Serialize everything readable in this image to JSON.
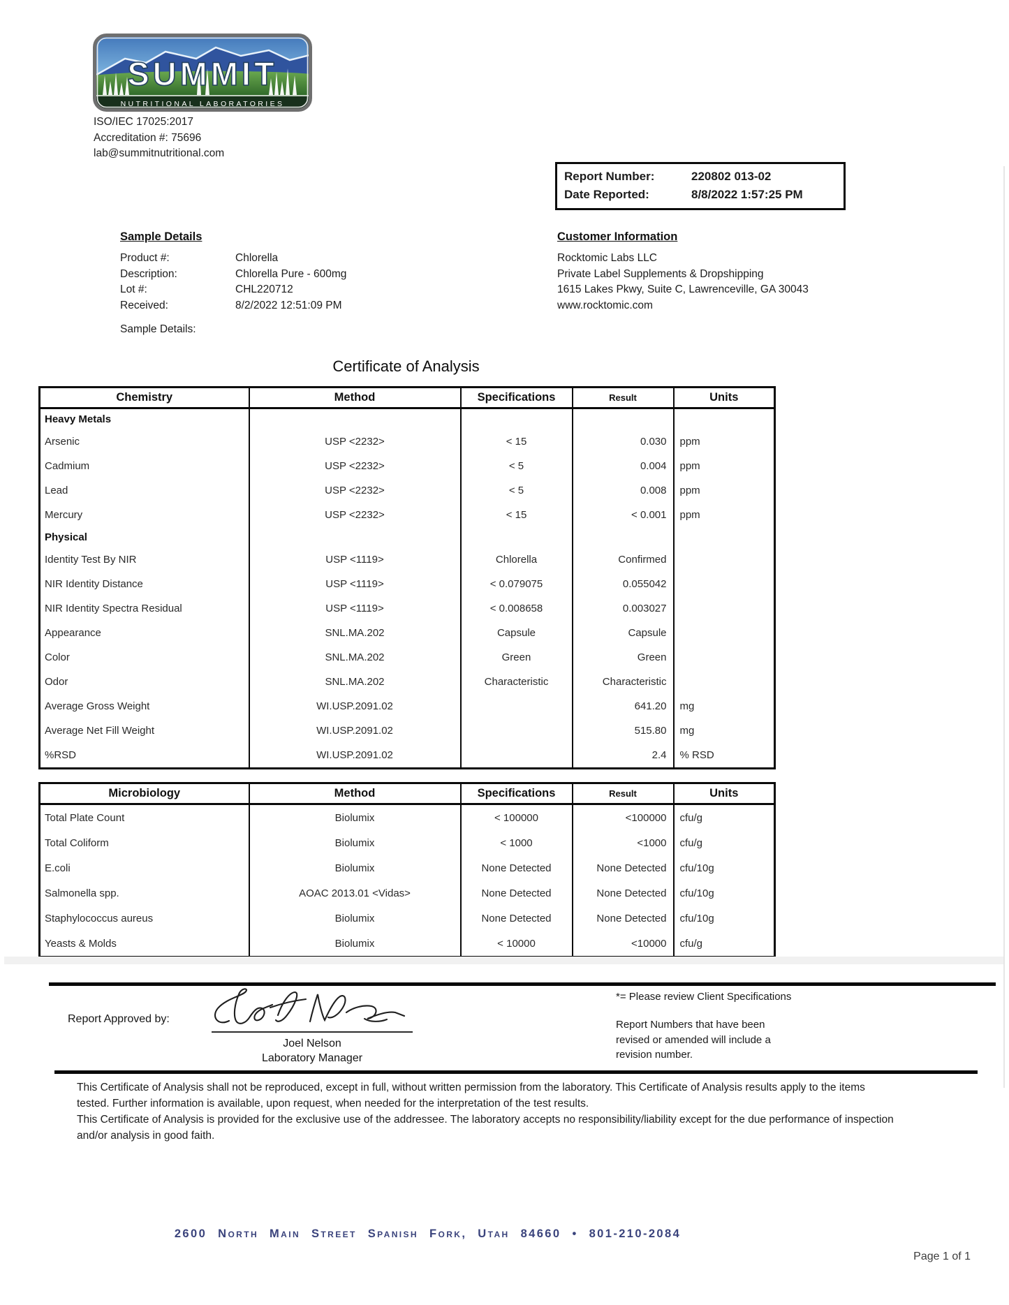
{
  "header": {
    "logo": {
      "title": "SUMMIT",
      "subtitle": "NUTRITIONAL LABORATORIES"
    },
    "accreditation": [
      "ISO/IEC 17025:2017",
      "Accreditation #: 75696",
      "lab@summitnutritional.com"
    ],
    "report_box": {
      "report_number_label": "Report Number:",
      "report_number": "220802 013-02",
      "date_reported_label": "Date Reported:",
      "date_reported": "8/8/2022 1:57:25 PM"
    }
  },
  "sample_details": {
    "heading": "Sample Details",
    "rows": [
      {
        "label": "Product #:",
        "value": "Chlorella"
      },
      {
        "label": "Description:",
        "value": "Chlorella Pure - 600mg"
      },
      {
        "label": "Lot #:",
        "value": "CHL220712"
      },
      {
        "label": "Received:",
        "value": "8/2/2022 12:51:09 PM"
      }
    ],
    "extra_label": "Sample Details:"
  },
  "customer": {
    "heading": "Customer Information",
    "lines": [
      "Rocktomic Labs LLC",
      "Private Label Supplements & Dropshipping",
      "1615 Lakes Pkwy, Suite C, Lawrenceville, GA 30043",
      "www.rocktomic.com"
    ]
  },
  "title": "Certificate of Analysis",
  "chemistry_table": {
    "headers": [
      "Chemistry",
      "Method",
      "Specifications",
      "Result",
      "Units"
    ],
    "rows": [
      {
        "section": "Heavy Metals"
      },
      {
        "name": "Arsenic",
        "method": "USP <2232>",
        "spec": "< 15",
        "result": "0.030",
        "units": "ppm"
      },
      {
        "name": "Cadmium",
        "method": "USP <2232>",
        "spec": "< 5",
        "result": "0.004",
        "units": "ppm"
      },
      {
        "name": "Lead",
        "method": "USP <2232>",
        "spec": "< 5",
        "result": "0.008",
        "units": "ppm"
      },
      {
        "name": "Mercury",
        "method": "USP <2232>",
        "spec": "< 15",
        "result": "< 0.001",
        "units": "ppm"
      },
      {
        "section": "Physical"
      },
      {
        "name": "Identity Test By NIR",
        "method": "USP <1119>",
        "spec": "Chlorella",
        "result": "Confirmed",
        "units": ""
      },
      {
        "name": "NIR Identity Distance",
        "method": "USP <1119>",
        "spec": "< 0.079075",
        "result": "0.055042",
        "units": ""
      },
      {
        "name": "NIR Identity Spectra Residual",
        "method": "USP <1119>",
        "spec": "< 0.008658",
        "result": "0.003027",
        "units": ""
      },
      {
        "name": "Appearance",
        "method": "SNL.MA.202",
        "spec": "Capsule",
        "result": "Capsule",
        "units": ""
      },
      {
        "name": "Color",
        "method": "SNL.MA.202",
        "spec": "Green",
        "result": "Green",
        "units": ""
      },
      {
        "name": "Odor",
        "method": "SNL.MA.202",
        "spec": "Characteristic",
        "result": "Characteristic",
        "units": ""
      },
      {
        "name": "Average Gross Weight",
        "method": "WI.USP.2091.02",
        "spec": "",
        "result": "641.20",
        "units": "mg"
      },
      {
        "name": "Average Net Fill Weight",
        "method": "WI.USP.2091.02",
        "spec": "",
        "result": "515.80",
        "units": "mg"
      },
      {
        "name": "%RSD",
        "method": "WI.USP.2091.02",
        "spec": "",
        "result": "2.4",
        "units": "% RSD"
      }
    ]
  },
  "microbiology_table": {
    "headers": [
      "Microbiology",
      "Method",
      "Specifications",
      "Result",
      "Units"
    ],
    "rows": [
      {
        "name": "Total Plate Count",
        "method": "Biolumix",
        "spec": "< 100000",
        "result": "<100000",
        "units": "cfu/g"
      },
      {
        "name": "Total Coliform",
        "method": "Biolumix",
        "spec": "< 1000",
        "result": "<1000",
        "units": "cfu/g"
      },
      {
        "name": "E.coli",
        "method": "Biolumix",
        "spec": "None Detected",
        "result": "None Detected",
        "units": "cfu/10g"
      },
      {
        "name": "Salmonella spp.",
        "method": "AOAC 2013.01 <Vidas>",
        "spec": "None Detected",
        "result": "None Detected",
        "units": "cfu/10g"
      },
      {
        "name": "Staphylococcus aureus",
        "method": "Biolumix",
        "spec": "None Detected",
        "result": "None Detected",
        "units": "cfu/10g"
      },
      {
        "name": "Yeasts & Molds",
        "method": "Biolumix",
        "spec": "< 10000",
        "result": "<10000",
        "units": "cfu/g"
      }
    ]
  },
  "approval": {
    "label": "Report Approved by:",
    "signer_name": "Joel Nelson",
    "signer_title": "Laboratory Manager"
  },
  "notes": {
    "asterisk": "*= Please review Client Specifications",
    "revision": "Report Numbers that have been revised or amended will include a revision number."
  },
  "disclaimer": [
    "This Certificate of Analysis shall not be reproduced, except in full, without written permission from the laboratory. This Certificate of Analysis results apply to the items tested. Further information is available, upon request, when needed for the interpretation of the test results.",
    "This Certificate of Analysis is provided for the exclusive use of the addressee. The laboratory accepts no responsibility/liability except for the due performance of inspection and/or analysis in good faith."
  ],
  "footer": {
    "address": "2600 North Main Street  Spanish Fork, Utah  84660 • 801-210-2084",
    "page": "Page 1 of 1"
  }
}
